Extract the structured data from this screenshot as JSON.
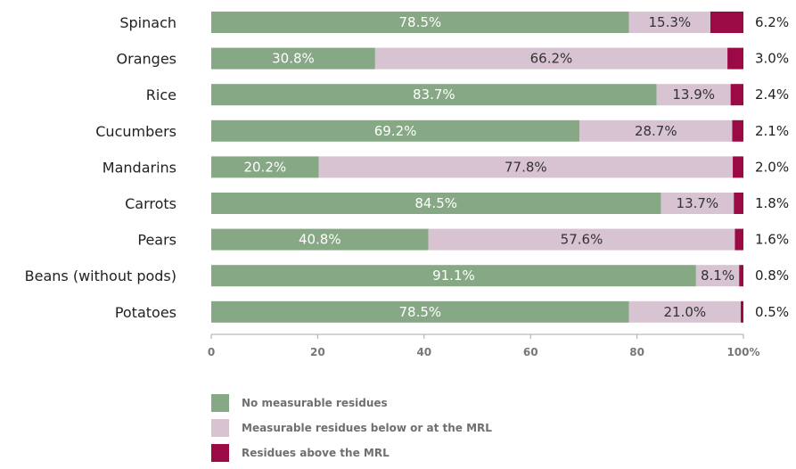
{
  "chart_data": {
    "type": "bar",
    "orientation": "horizontal",
    "stacked": true,
    "categories": [
      "Spinach",
      "Oranges",
      "Rice",
      "Cucumbers",
      "Mandarins",
      "Carrots",
      "Pears",
      "Beans (without pods)",
      "Potatoes"
    ],
    "series": [
      {
        "name": "No measurable residues",
        "color": "#86a884",
        "label_color": "#ffffff",
        "values": [
          78.5,
          30.8,
          83.7,
          69.2,
          20.2,
          84.5,
          40.8,
          91.1,
          78.5
        ],
        "labels": [
          "78.5%",
          "30.8%",
          "83.7%",
          "69.2%",
          "20.2%",
          "84.5%",
          "40.8%",
          "91.1%",
          "78.5%"
        ]
      },
      {
        "name": "Measurable residues below or at the MRL",
        "color": "#d8c3d2",
        "label_color": "#333333",
        "values": [
          15.3,
          66.2,
          13.9,
          28.7,
          77.8,
          13.7,
          57.6,
          8.1,
          21.0
        ],
        "labels": [
          "15.3%",
          "66.2%",
          "13.9%",
          "28.7%",
          "77.8%",
          "13.7%",
          "57.6%",
          "8.1%",
          "21.0%"
        ]
      },
      {
        "name": "Residues above the MRL",
        "color": "#9b0a44",
        "values": [
          6.2,
          3.0,
          2.4,
          2.1,
          2.0,
          1.8,
          1.6,
          0.8,
          0.5
        ],
        "labels": [
          "6.2%",
          "3.0%",
          "2.4%",
          "2.1%",
          "2.0%",
          "1.8%",
          "1.6%",
          "0.8%",
          "0.5%"
        ]
      }
    ],
    "xlim": [
      0,
      100
    ],
    "xticks": [
      0,
      20,
      40,
      60,
      80,
      100
    ],
    "xtick_labels": [
      "0",
      "20",
      "40",
      "60",
      "80",
      "100%"
    ],
    "title": "",
    "xlabel": "",
    "ylabel": "",
    "grid": false,
    "legend_position": "bottom"
  }
}
